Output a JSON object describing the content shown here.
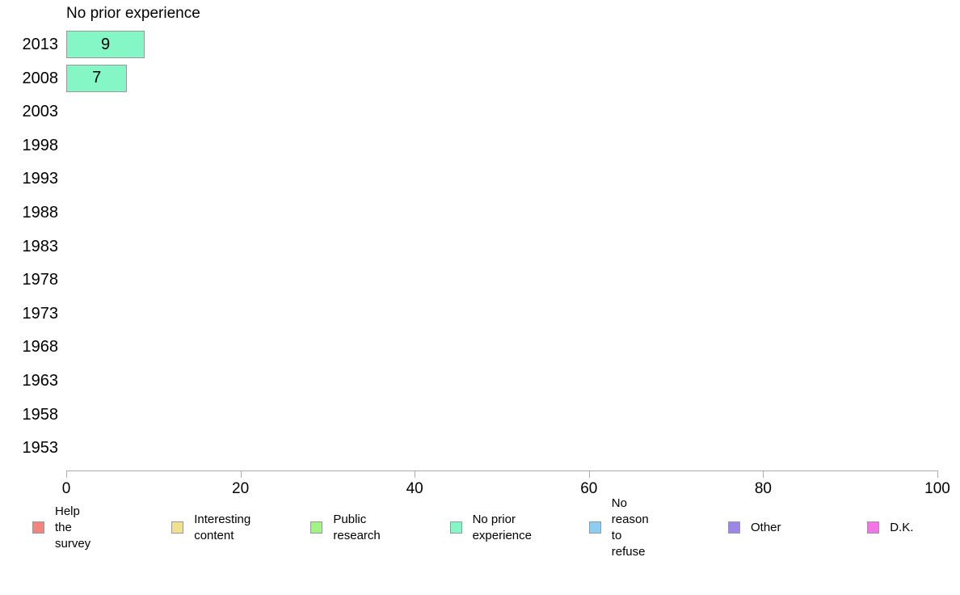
{
  "chart_data": {
    "type": "bar",
    "orientation": "horizontal",
    "title": "No prior experience",
    "categories": [
      "2013",
      "2008",
      "2003",
      "1998",
      "1993",
      "1988",
      "1983",
      "1978",
      "1973",
      "1968",
      "1963",
      "1958",
      "1953"
    ],
    "values": [
      9,
      7,
      null,
      null,
      null,
      null,
      null,
      null,
      null,
      null,
      null,
      null,
      null
    ],
    "bar_color": "#85f6c6",
    "bar_border_color": "#999999",
    "xlabel": "",
    "ylabel": "",
    "xlim": [
      0,
      100
    ],
    "xticks": [
      0,
      20,
      40,
      60,
      80,
      100
    ],
    "grid": false,
    "axis_color": "#aaaaaa",
    "legend_position": "bottom",
    "legend": [
      {
        "label": "Help the survey",
        "color": "#f4837d"
      },
      {
        "label": "Interesting\ncontent",
        "color": "#f2e18c"
      },
      {
        "label": "Public research",
        "color": "#9ef583"
      },
      {
        "label": "No prior\nexperience",
        "color": "#85f6c6"
      },
      {
        "label": "No reason\nto refuse",
        "color": "#8ecdf2"
      },
      {
        "label": "Other",
        "color": "#9c86e8"
      },
      {
        "label": "D.K.",
        "color": "#f175e3"
      }
    ]
  }
}
